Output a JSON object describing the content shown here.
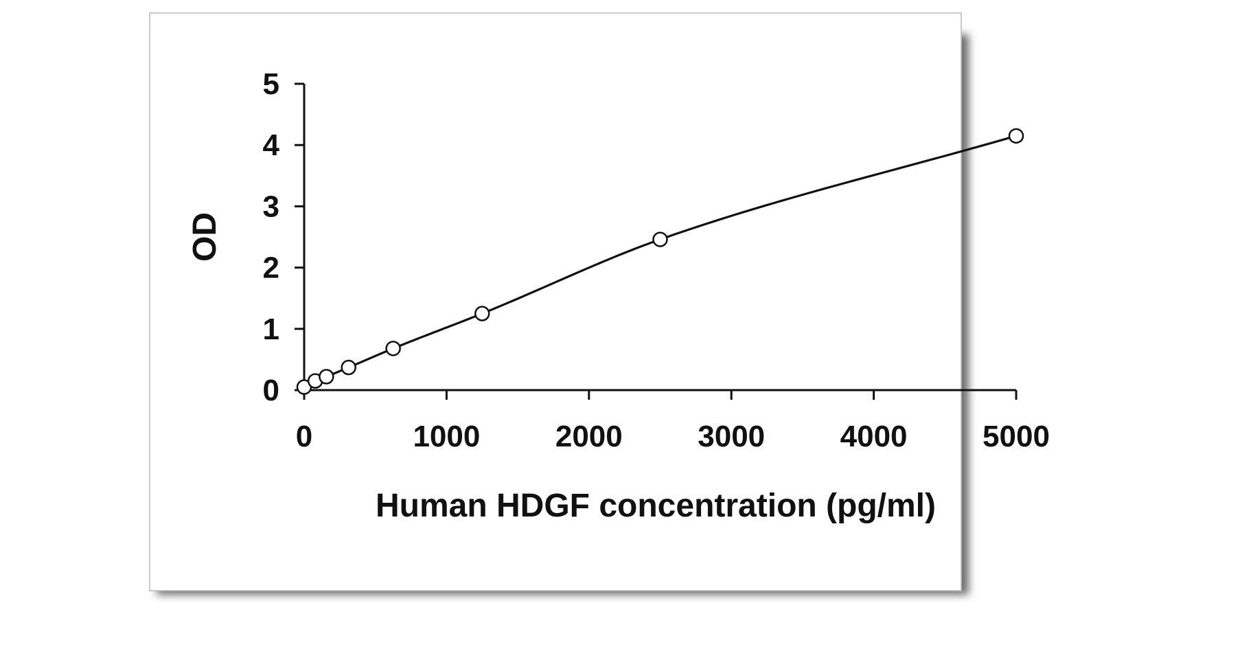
{
  "chart_data": {
    "type": "scatter",
    "xlabel": "Human HDGF concentration (pg/ml)",
    "ylabel": "OD",
    "xlim": [
      0,
      5000
    ],
    "ylim": [
      0,
      5
    ],
    "x_ticks": [
      0,
      1000,
      2000,
      3000,
      4000,
      5000
    ],
    "y_ticks": [
      0,
      1,
      2,
      3,
      4,
      5
    ],
    "grid": false,
    "legend": "none",
    "series": [
      {
        "points": [
          {
            "x": 0,
            "y": 0.05
          },
          {
            "x": 78,
            "y": 0.15
          },
          {
            "x": 156,
            "y": 0.22
          },
          {
            "x": 312,
            "y": 0.37
          },
          {
            "x": 625,
            "y": 0.68
          },
          {
            "x": 1250,
            "y": 1.25
          },
          {
            "x": 2500,
            "y": 2.46
          },
          {
            "x": 5000,
            "y": 4.15
          }
        ],
        "fit_curve": true
      }
    ],
    "colors": {
      "line": "#111111",
      "marker_fill": "#ffffff",
      "frame_border": "#b8b8b8",
      "frame_shadow": "#6e6e6e"
    }
  }
}
